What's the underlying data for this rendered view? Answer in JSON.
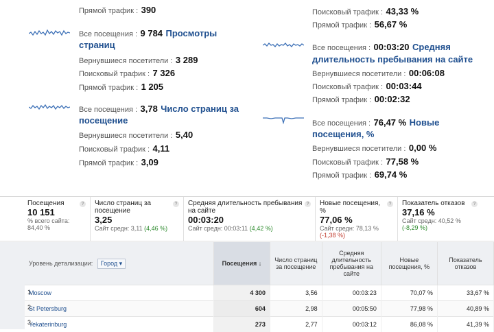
{
  "left_column": {
    "top_partial": {
      "label": "Прямой трафик :",
      "value": "390"
    },
    "pageviews": {
      "all_label": "Все посещения :",
      "all_value": "9 784",
      "title_line1": "Просмотры",
      "title_line2": "страниц",
      "returning_label": "Вернувшиеся посетители :",
      "returning_value": "3 289",
      "search_label": "Поисковый трафик :",
      "search_value": "7 326",
      "direct_label": "Прямой трафик :",
      "direct_value": "1 205"
    },
    "pages_per_visit": {
      "all_label": "Все посещения :",
      "all_value": "3,78",
      "title_line1": "Число страниц за",
      "title_line2": "посещение",
      "returning_label": "Вернувшиеся посетители :",
      "returning_value": "5,40",
      "search_label": "Поисковый трафик :",
      "search_value": "4,11",
      "direct_label": "Прямой трафик :",
      "direct_value": "3,09"
    }
  },
  "right_column": {
    "top_partial": {
      "search_label": "Поисковый трафик :",
      "search_value": "43,33 %",
      "direct_label": "Прямой трафик :",
      "direct_value": "56,67 %"
    },
    "avg_duration": {
      "all_label": "Все посещения :",
      "all_value": "00:03:20",
      "title_line1": "Средняя",
      "title_line2": "длительность пребывания на сайте",
      "returning_label": "Вернувшиеся посетители :",
      "returning_value": "00:06:08",
      "search_label": "Поисковый трафик :",
      "search_value": "00:03:44",
      "direct_label": "Прямой трафик :",
      "direct_value": "00:02:32"
    },
    "new_visits": {
      "all_label": "Все посещения :",
      "all_value": "76,47 %",
      "title_line1": "Новые",
      "title_line2": "посещения, %",
      "returning_label": "Вернувшиеся посетители :",
      "returning_value": "0,00 %",
      "search_label": "Поисковый трафик :",
      "search_value": "77,58 %",
      "direct_label": "Прямой трафик :",
      "direct_value": "69,74 %"
    }
  },
  "summary": [
    {
      "title": "Посещения",
      "value": "10 151",
      "sub1": "% всего сайта:",
      "sub2": "84,40 %",
      "delta": ""
    },
    {
      "title": "Число страниц за посещение",
      "value": "3,25",
      "sub1": "Сайт средн: 3,11",
      "sub2": "",
      "delta": "(4,46 %)"
    },
    {
      "title": "Средняя длительность пребывания на сайте",
      "value": "00:03:20",
      "sub1": "Сайт средн: 00:03:11",
      "sub2": "",
      "delta": "(4,42 %)"
    },
    {
      "title": "Новые посещения, %",
      "value": "77,06 %",
      "sub1": "Сайт средн: 78,13 %",
      "sub2": "",
      "delta": "(-1,38 %)"
    },
    {
      "title": "Показатель отказов",
      "value": "37,16 %",
      "sub1": "Сайт средн: 40,52 %",
      "sub2": "",
      "delta": "(-8,29 %)"
    }
  ],
  "table": {
    "dimension_label": "Уровень детализации:",
    "dimension_value": "Город",
    "headers": [
      "Посещения ↓",
      "Число страниц за посещение",
      "Средняя длительность пребывания на сайте",
      "Новые посещения, %",
      "Показатель отказов"
    ],
    "rows": [
      {
        "n": "1.",
        "city": "Moscow",
        "visits": "4 300",
        "pages": "3,56",
        "duration": "00:03:23",
        "new": "70,07 %",
        "bounce": "33,67 %"
      },
      {
        "n": "2.",
        "city": "St Petersburg",
        "visits": "604",
        "pages": "2,98",
        "duration": "00:05:50",
        "new": "77,98 %",
        "bounce": "40,89 %"
      },
      {
        "n": "3.",
        "city": "Yekaterinburg",
        "visits": "273",
        "pages": "2,77",
        "duration": "00:03:12",
        "new": "86,08 %",
        "bounce": "41,39 %"
      }
    ]
  },
  "colors": {
    "link": "#1f4f8f",
    "positive": "#2c8a2c",
    "negative": "#c0392b"
  }
}
